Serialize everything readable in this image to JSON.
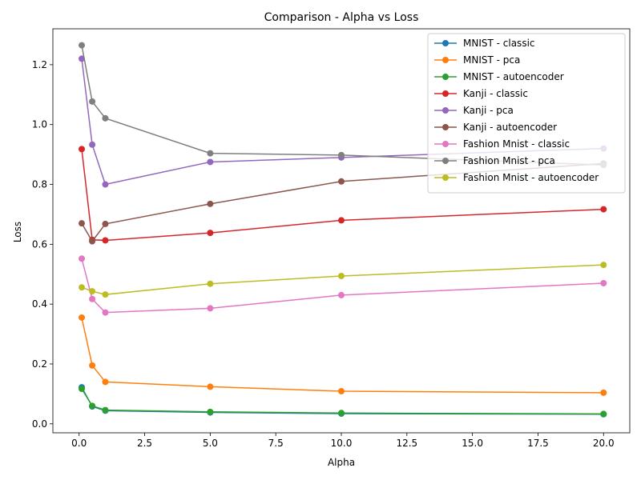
{
  "chart_data": {
    "type": "line",
    "title": "Comparison - Alpha vs Loss",
    "xlabel": "Alpha",
    "ylabel": "Loss",
    "xlim": [
      -1.0,
      21.0
    ],
    "ylim": [
      -0.03,
      1.32
    ],
    "xticks": [
      0.0,
      2.5,
      5.0,
      7.5,
      10.0,
      12.5,
      15.0,
      17.5,
      20.0
    ],
    "xtick_labels": [
      "0.0",
      "2.5",
      "5.0",
      "7.5",
      "10.0",
      "12.5",
      "15.0",
      "17.5",
      "20.0"
    ],
    "yticks": [
      0.0,
      0.2,
      0.4,
      0.6,
      0.8,
      1.0,
      1.2
    ],
    "ytick_labels": [
      "0.0",
      "0.2",
      "0.4",
      "0.6",
      "0.8",
      "1.0",
      "1.2"
    ],
    "grid": false,
    "legend_position": "top-right",
    "x": [
      0.1,
      0.5,
      1,
      5,
      10,
      20
    ],
    "series": [
      {
        "name": "MNIST - classic",
        "color": "#1f77b4",
        "values": [
          0.122,
          0.058,
          0.044,
          0.038,
          0.034,
          0.032
        ]
      },
      {
        "name": "MNIST - pca",
        "color": "#ff7f0e",
        "values": [
          0.355,
          0.195,
          0.14,
          0.124,
          0.109,
          0.104
        ]
      },
      {
        "name": "MNIST - autoencoder",
        "color": "#2ca02c",
        "values": [
          0.117,
          0.06,
          0.046,
          0.04,
          0.036,
          0.033
        ]
      },
      {
        "name": "Kanji - classic",
        "color": "#d62728",
        "values": [
          0.918,
          0.615,
          0.613,
          0.638,
          0.68,
          0.717
        ]
      },
      {
        "name": "Kanji - pca",
        "color": "#9467bd",
        "values": [
          1.22,
          0.933,
          0.8,
          0.875,
          0.89,
          0.92
        ]
      },
      {
        "name": "Kanji - autoencoder",
        "color": "#8c564b",
        "values": [
          0.67,
          0.61,
          0.668,
          0.735,
          0.81,
          0.87
        ]
      },
      {
        "name": "Fashion Mnist - classic",
        "color": "#e377c2",
        "values": [
          0.552,
          0.417,
          0.372,
          0.386,
          0.43,
          0.47
        ]
      },
      {
        "name": "Fashion Mnist - pca",
        "color": "#7f7f7f",
        "values": [
          1.265,
          1.077,
          1.021,
          0.904,
          0.898,
          0.865
        ]
      },
      {
        "name": "Fashion Mnist - autoencoder",
        "color": "#bcbd22",
        "values": [
          0.456,
          0.443,
          0.432,
          0.468,
          0.494,
          0.531
        ]
      }
    ]
  }
}
